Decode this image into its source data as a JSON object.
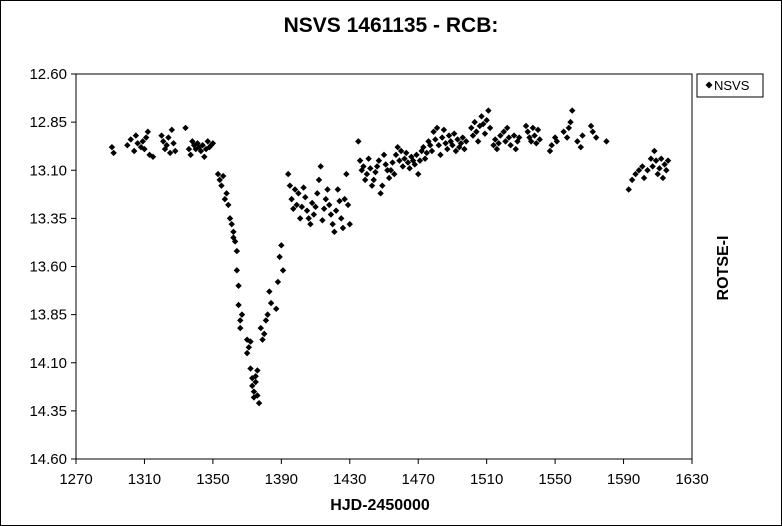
{
  "chart_data": {
    "type": "scatter",
    "title": "NSVS 1461135 - RCB:",
    "xlabel": "HJD-2450000",
    "ylabel": "ROTSE-I",
    "xlim": [
      1270,
      1630
    ],
    "ylim": [
      12.6,
      14.6
    ],
    "y_inverted": true,
    "x_ticks": [
      "1270",
      "1310",
      "1350",
      "1390",
      "1430",
      "1470",
      "1510",
      "1550",
      "1590",
      "1630"
    ],
    "y_ticks": [
      "12.60",
      "12.85",
      "13.10",
      "13.35",
      "13.60",
      "13.85",
      "14.10",
      "14.35",
      "14.60"
    ],
    "grid": false,
    "legend_position": "top-right",
    "marker_color": "#000000",
    "series": [
      {
        "name": "NSVS",
        "marker": "diamond",
        "points": [
          [
            1291,
            12.98
          ],
          [
            1292,
            13.01
          ],
          [
            1300,
            12.97
          ],
          [
            1302,
            12.94
          ],
          [
            1304,
            13.0
          ],
          [
            1305,
            12.92
          ],
          [
            1306,
            12.96
          ],
          [
            1308,
            12.98
          ],
          [
            1309,
            12.95
          ],
          [
            1310,
            12.99
          ],
          [
            1311,
            12.93
          ],
          [
            1312,
            12.9
          ],
          [
            1313,
            13.02
          ],
          [
            1315,
            13.03
          ],
          [
            1320,
            12.92
          ],
          [
            1321,
            12.95
          ],
          [
            1322,
            12.99
          ],
          [
            1323,
            12.97
          ],
          [
            1324,
            12.93
          ],
          [
            1325,
            13.01
          ],
          [
            1326,
            12.89
          ],
          [
            1327,
            12.96
          ],
          [
            1328,
            13.0
          ],
          [
            1334,
            12.88
          ],
          [
            1336,
            12.99
          ],
          [
            1337,
            13.02
          ],
          [
            1338,
            12.95
          ],
          [
            1339,
            12.97
          ],
          [
            1340,
            12.99
          ],
          [
            1341,
            12.96
          ],
          [
            1342,
            12.98
          ],
          [
            1343,
            13.0
          ],
          [
            1344,
            12.97
          ],
          [
            1345,
            13.03
          ],
          [
            1346,
            12.99
          ],
          [
            1347,
            12.95
          ],
          [
            1348,
            12.98
          ],
          [
            1349,
            12.97
          ],
          [
            1350,
            12.96
          ],
          [
            1353,
            13.12
          ],
          [
            1354,
            13.15
          ],
          [
            1355,
            13.18
          ],
          [
            1356,
            13.13
          ],
          [
            1357,
            13.25
          ],
          [
            1358,
            13.22
          ],
          [
            1359,
            13.28
          ],
          [
            1360,
            13.35
          ],
          [
            1361,
            13.38
          ],
          [
            1362,
            13.42
          ],
          [
            1362,
            13.45
          ],
          [
            1363,
            13.47
          ],
          [
            1364,
            13.52
          ],
          [
            1364,
            13.62
          ],
          [
            1365,
            13.7
          ],
          [
            1365,
            13.8
          ],
          [
            1366,
            13.88
          ],
          [
            1366,
            13.92
          ],
          [
            1367,
            13.85
          ],
          [
            1370,
            13.98
          ],
          [
            1370,
            14.05
          ],
          [
            1371,
            14.02
          ],
          [
            1372,
            13.99
          ],
          [
            1372,
            14.13
          ],
          [
            1373,
            14.18
          ],
          [
            1373,
            14.22
          ],
          [
            1374,
            14.25
          ],
          [
            1374,
            14.28
          ],
          [
            1375,
            14.2
          ],
          [
            1375,
            14.17
          ],
          [
            1376,
            14.14
          ],
          [
            1376,
            14.27
          ],
          [
            1377,
            14.31
          ],
          [
            1378,
            13.92
          ],
          [
            1379,
            13.98
          ],
          [
            1380,
            13.95
          ],
          [
            1381,
            13.88
          ],
          [
            1382,
            13.85
          ],
          [
            1383,
            13.73
          ],
          [
            1384,
            13.79
          ],
          [
            1387,
            13.82
          ],
          [
            1388,
            13.68
          ],
          [
            1389,
            13.55
          ],
          [
            1390,
            13.49
          ],
          [
            1391,
            13.62
          ],
          [
            1394,
            13.12
          ],
          [
            1395,
            13.18
          ],
          [
            1396,
            13.25
          ],
          [
            1397,
            13.3
          ],
          [
            1398,
            13.2
          ],
          [
            1399,
            13.28
          ],
          [
            1400,
            13.22
          ],
          [
            1401,
            13.35
          ],
          [
            1402,
            13.29
          ],
          [
            1403,
            13.19
          ],
          [
            1404,
            13.24
          ],
          [
            1405,
            13.31
          ],
          [
            1406,
            13.35
          ],
          [
            1407,
            13.38
          ],
          [
            1408,
            13.27
          ],
          [
            1409,
            13.33
          ],
          [
            1410,
            13.29
          ],
          [
            1411,
            13.22
          ],
          [
            1412,
            13.15
          ],
          [
            1413,
            13.08
          ],
          [
            1414,
            13.36
          ],
          [
            1415,
            13.3
          ],
          [
            1416,
            13.25
          ],
          [
            1417,
            13.2
          ],
          [
            1418,
            13.28
          ],
          [
            1419,
            13.33
          ],
          [
            1420,
            13.38
          ],
          [
            1421,
            13.42
          ],
          [
            1422,
            13.31
          ],
          [
            1423,
            13.2
          ],
          [
            1424,
            13.26
          ],
          [
            1425,
            13.35
          ],
          [
            1426,
            13.4
          ],
          [
            1427,
            13.25
          ],
          [
            1428,
            13.12
          ],
          [
            1429,
            13.28
          ],
          [
            1430,
            13.38
          ],
          [
            1435,
            12.95
          ],
          [
            1436,
            13.05
          ],
          [
            1437,
            13.1
          ],
          [
            1438,
            13.08
          ],
          [
            1439,
            13.15
          ],
          [
            1440,
            13.12
          ],
          [
            1441,
            13.04
          ],
          [
            1442,
            13.09
          ],
          [
            1443,
            13.18
          ],
          [
            1444,
            13.15
          ],
          [
            1445,
            13.11
          ],
          [
            1446,
            13.08
          ],
          [
            1447,
            13.05
          ],
          [
            1448,
            13.22
          ],
          [
            1449,
            13.18
          ],
          [
            1450,
            13.02
          ],
          [
            1451,
            13.07
          ],
          [
            1452,
            13.1
          ],
          [
            1453,
            13.14
          ],
          [
            1454,
            13.1
          ],
          [
            1455,
            13.06
          ],
          [
            1456,
            13.12
          ],
          [
            1457,
            13.02
          ],
          [
            1458,
            12.98
          ],
          [
            1459,
            13.05
          ],
          [
            1460,
            13.0
          ],
          [
            1461,
            13.08
          ],
          [
            1462,
            13.04
          ],
          [
            1463,
            13.01
          ],
          [
            1464,
            13.06
          ],
          [
            1465,
            13.09
          ],
          [
            1466,
            13.03
          ],
          [
            1467,
            13.05
          ],
          [
            1468,
            13.07
          ],
          [
            1469,
            13.02
          ],
          [
            1470,
            13.12
          ],
          [
            1471,
            13.05
          ],
          [
            1472,
            13.0
          ],
          [
            1473,
            12.98
          ],
          [
            1474,
            13.04
          ],
          [
            1475,
            13.01
          ],
          [
            1476,
            12.95
          ],
          [
            1477,
            12.97
          ],
          [
            1478,
            13.0
          ],
          [
            1479,
            12.9
          ],
          [
            1480,
            12.94
          ],
          [
            1481,
            12.88
          ],
          [
            1482,
            12.97
          ],
          [
            1483,
            13.02
          ],
          [
            1484,
            12.93
          ],
          [
            1485,
            12.89
          ],
          [
            1486,
            12.96
          ],
          [
            1487,
            12.99
          ],
          [
            1488,
            12.92
          ],
          [
            1489,
            12.95
          ],
          [
            1490,
            12.97
          ],
          [
            1491,
            12.91
          ],
          [
            1492,
            13.0
          ],
          [
            1493,
            12.94
          ],
          [
            1494,
            12.98
          ],
          [
            1495,
            12.96
          ],
          [
            1496,
            12.93
          ],
          [
            1497,
            12.99
          ],
          [
            1498,
            12.95
          ],
          [
            1501,
            12.88
          ],
          [
            1502,
            12.92
          ],
          [
            1503,
            12.85
          ],
          [
            1504,
            12.9
          ],
          [
            1505,
            12.95
          ],
          [
            1506,
            12.87
          ],
          [
            1507,
            12.82
          ],
          [
            1508,
            12.86
          ],
          [
            1509,
            12.91
          ],
          [
            1510,
            12.84
          ],
          [
            1511,
            12.79
          ],
          [
            1512,
            12.88
          ],
          [
            1514,
            12.97
          ],
          [
            1515,
            12.94
          ],
          [
            1516,
            12.99
          ],
          [
            1517,
            12.96
          ],
          [
            1518,
            12.92
          ],
          [
            1520,
            12.9
          ],
          [
            1521,
            12.95
          ],
          [
            1522,
            12.88
          ],
          [
            1523,
            12.93
          ],
          [
            1524,
            12.97
          ],
          [
            1526,
            12.92
          ],
          [
            1527,
            12.99
          ],
          [
            1528,
            12.95
          ],
          [
            1529,
            12.93
          ],
          [
            1533,
            12.87
          ],
          [
            1534,
            12.9
          ],
          [
            1535,
            12.93
          ],
          [
            1536,
            12.95
          ],
          [
            1537,
            12.88
          ],
          [
            1538,
            12.92
          ],
          [
            1539,
            12.96
          ],
          [
            1540,
            12.89
          ],
          [
            1541,
            12.94
          ],
          [
            1547,
            13.0
          ],
          [
            1548,
            12.97
          ],
          [
            1550,
            12.93
          ],
          [
            1551,
            12.95
          ],
          [
            1555,
            12.9
          ],
          [
            1557,
            12.93
          ],
          [
            1558,
            12.88
          ],
          [
            1559,
            12.85
          ],
          [
            1560,
            12.79
          ],
          [
            1563,
            12.95
          ],
          [
            1565,
            12.98
          ],
          [
            1566,
            12.92
          ],
          [
            1571,
            12.87
          ],
          [
            1572,
            12.9
          ],
          [
            1574,
            12.93
          ],
          [
            1580,
            12.95
          ],
          [
            1593,
            13.2
          ],
          [
            1595,
            13.15
          ],
          [
            1597,
            13.12
          ],
          [
            1599,
            13.1
          ],
          [
            1601,
            13.08
          ],
          [
            1602,
            13.14
          ],
          [
            1604,
            13.1
          ],
          [
            1606,
            13.04
          ],
          [
            1607,
            13.08
          ],
          [
            1608,
            13.0
          ],
          [
            1609,
            13.05
          ],
          [
            1610,
            13.12
          ],
          [
            1611,
            13.09
          ],
          [
            1612,
            13.04
          ],
          [
            1613,
            13.14
          ],
          [
            1614,
            13.07
          ],
          [
            1615,
            13.1
          ],
          [
            1616,
            13.05
          ]
        ]
      }
    ]
  }
}
